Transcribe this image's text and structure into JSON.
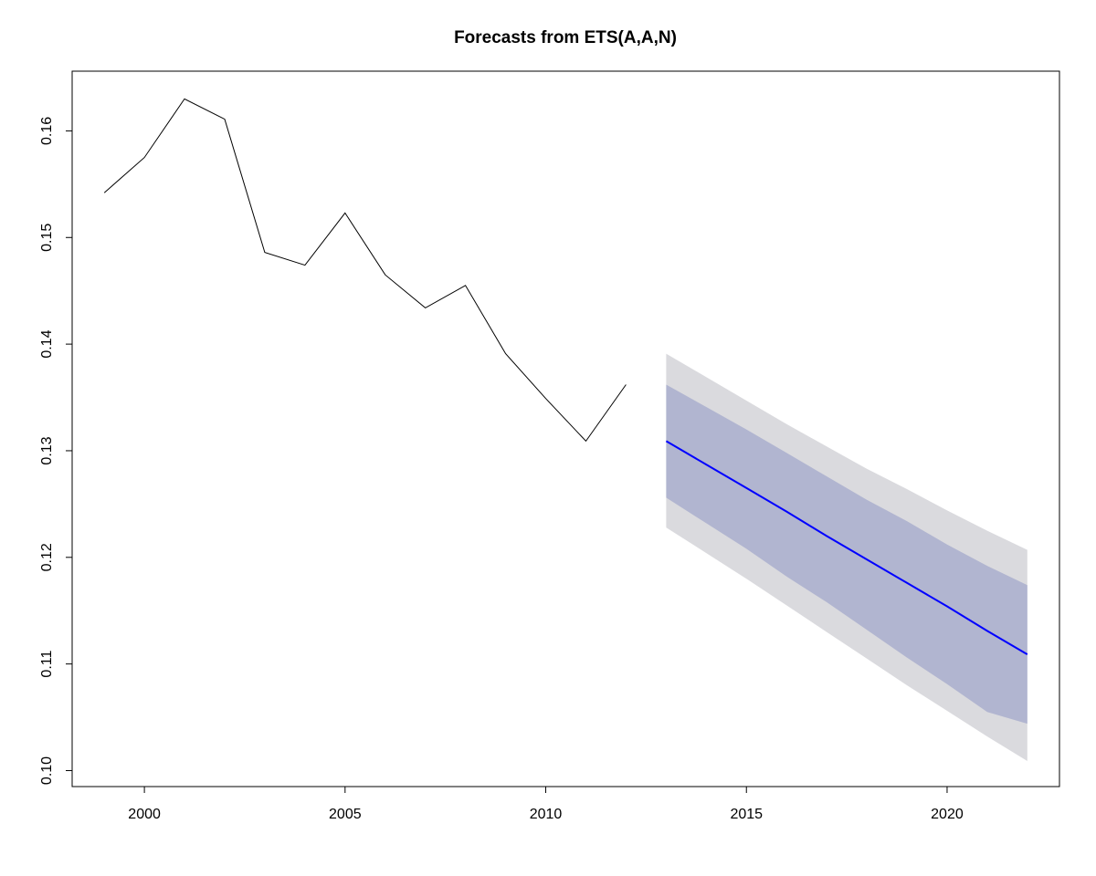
{
  "chart_data": {
    "type": "line",
    "title": "Forecasts from ETS(A,A,N)",
    "xlabel": "",
    "ylabel": "",
    "xlim": [
      1998.2,
      2022.8
    ],
    "ylim": [
      0.0985,
      0.1656
    ],
    "x_ticks": [
      "2000",
      "2005",
      "2010",
      "2015",
      "2020"
    ],
    "y_ticks": [
      "0.10",
      "0.11",
      "0.12",
      "0.13",
      "0.14",
      "0.15",
      "0.16"
    ],
    "grid": false,
    "colors": {
      "history": "#000000",
      "forecast": "#0000ff",
      "band_80": "#b1b5d0",
      "band_95": "#dadade",
      "axis": "#000000"
    },
    "series": [
      {
        "x": [
          1999,
          2000,
          2001,
          2002,
          2003,
          2004,
          2005,
          2006,
          2007,
          2008,
          2009,
          2010,
          2011,
          2012
        ],
        "values": [
          0.1542,
          0.1575,
          0.163,
          0.1611,
          0.1486,
          0.1474,
          0.1523,
          0.1465,
          0.1434,
          0.1455,
          0.1391,
          0.1349,
          0.1309,
          0.1362
        ]
      },
      {
        "x": [
          2013,
          2014,
          2015,
          2016,
          2017,
          2018,
          2019,
          2020,
          2021,
          2022
        ],
        "values": [
          0.1309,
          0.1287,
          0.1265,
          0.1243,
          0.122,
          0.1198,
          0.1176,
          0.1154,
          0.1131,
          0.1109
        ],
        "lo80": [
          0.1256,
          0.1232,
          0.1208,
          0.1182,
          0.1158,
          0.1132,
          0.1106,
          0.1081,
          0.1055,
          0.1044
        ],
        "hi80": [
          0.1362,
          0.1341,
          0.132,
          0.1298,
          0.1276,
          0.1254,
          0.1234,
          0.1212,
          0.1192,
          0.1174
        ],
        "lo95": [
          0.1228,
          0.1204,
          0.118,
          0.1155,
          0.113,
          0.1105,
          0.108,
          0.1056,
          0.1032,
          0.1009
        ],
        "hi95": [
          0.1391,
          0.1369,
          0.1347,
          0.1325,
          0.1304,
          0.1283,
          0.1264,
          0.1244,
          0.1225,
          0.1207
        ]
      }
    ]
  }
}
